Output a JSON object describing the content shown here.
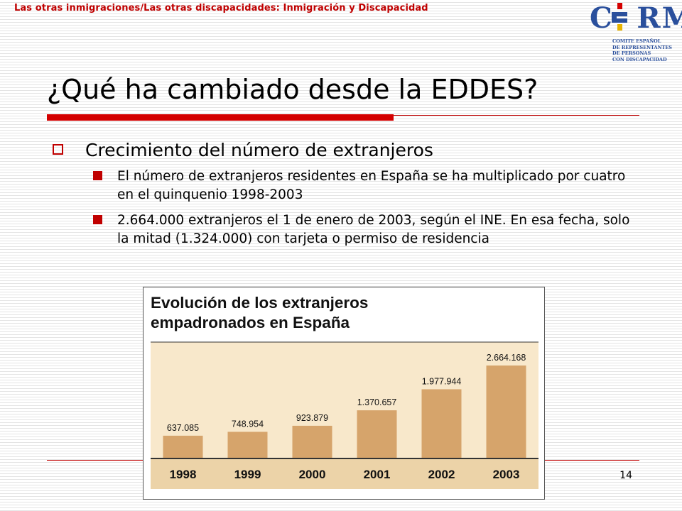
{
  "header": {
    "text": "Las otras inmigraciones/Las otras discapacidades: Inmigración y Discapacidad"
  },
  "logo": {
    "name": "CERMI",
    "subtitle": [
      "COMITE ESPAÑOL",
      "DE REPRESENTANTES",
      "DE PERSONAS",
      "CON DISCAPACIDAD"
    ],
    "color": "#2a4f9c"
  },
  "slide": {
    "title": "¿Qué ha cambiado desde la EDDES?",
    "bullet_main": "Crecimiento del número de extranjeros",
    "sub_bullets": [
      "El número de extranjeros residentes en España se ha multiplicado por cuatro en el quinquenio 1998-2003",
      "2.664.000 extranjeros el 1 de enero de 2003, según el INE. En esa fecha, solo la mitad (1.324.000) con tarjeta o permiso de residencia"
    ],
    "page_number": "14"
  },
  "colors": {
    "accent_red": "#c00000",
    "bar_fill": "#d6a46b",
    "plot_background": "#f8e8cb",
    "axis_band": "#ecd3a8"
  },
  "chart_data": {
    "type": "bar",
    "title": "Evolución de los extranjeros empadronados en España",
    "categories": [
      "1998",
      "1999",
      "2000",
      "2001",
      "2002",
      "2003"
    ],
    "values": [
      637085,
      748954,
      923879,
      1370657,
      1977944,
      2664168
    ],
    "value_labels": [
      "637.085",
      "748.954",
      "923.879",
      "1.370.657",
      "1.977.944",
      "2.664.168"
    ],
    "xlabel": "",
    "ylabel": "",
    "grid": false,
    "legend": "none"
  }
}
